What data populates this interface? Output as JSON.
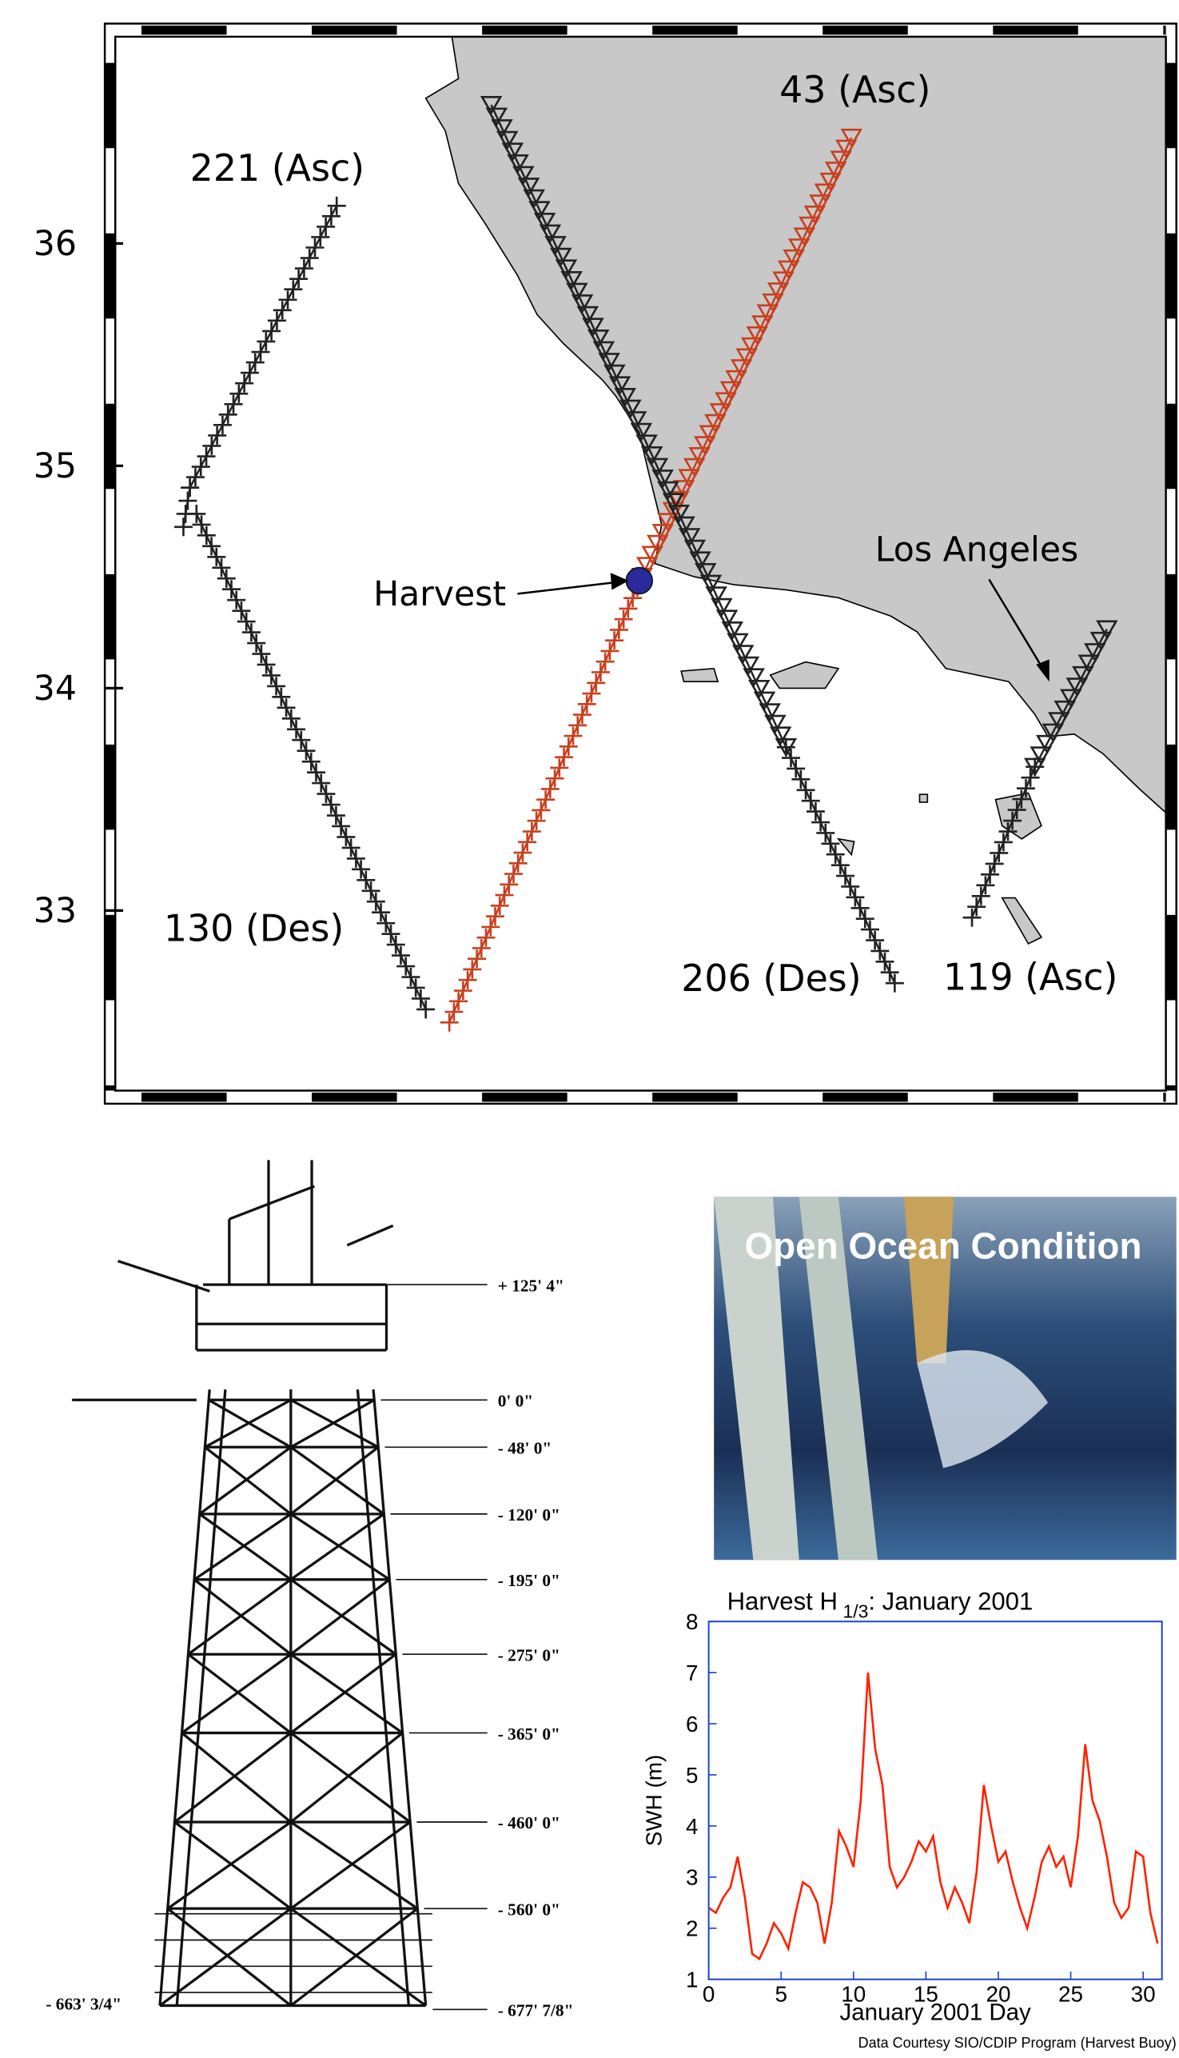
{
  "map": {
    "ylim": [
      32.19,
      36.93
    ],
    "yticks": [
      33,
      34,
      35,
      36
    ],
    "track_labels": [
      "221 (Asc)",
      "43 (Asc)",
      "130 (Des)",
      "206 (Des)",
      "119 (Asc)"
    ],
    "harvest": "Harvest",
    "city": "Los Angeles"
  },
  "platform": {
    "elevations": [
      "+ 125' 4\"",
      "0' 0\"",
      "- 48' 0\"",
      "- 120' 0\"",
      "- 195' 0\"",
      "- 275' 0\"",
      "- 365' 0\"",
      "- 460' 0\"",
      "- 560' 0\"",
      "- 677' 7/8\""
    ],
    "base_left": "- 663' 3/4\""
  },
  "photo": {
    "caption": "Open Ocean Condition"
  },
  "chart_data": {
    "type": "line",
    "title": "Harvest H",
    "title_subscript": "1/3",
    "title_suffix": ": January 2001",
    "x_label": "January 2001 Day",
    "y_label": "SWH (m)",
    "credit": "Data Courtesy SIO/CDIP Program (Harvest Buoy)",
    "xlim": [
      0,
      31.3
    ],
    "xticks": [
      0,
      5,
      10,
      15,
      20,
      25,
      30
    ],
    "ylim": [
      1,
      8
    ],
    "yticks": [
      1,
      2,
      3,
      4,
      5,
      6,
      7,
      8
    ],
    "series": [
      {
        "color": "#ff2200",
        "x": [
          0,
          0.5,
          1,
          1.5,
          2,
          2.5,
          3,
          3.5,
          4,
          4.5,
          5,
          5.5,
          6,
          6.5,
          7,
          7.5,
          8,
          8.5,
          9,
          9.5,
          10,
          10.5,
          11,
          11.5,
          12,
          12.5,
          13,
          13.5,
          14,
          14.5,
          15,
          15.5,
          16,
          16.5,
          17,
          17.5,
          18,
          18.5,
          19,
          19.5,
          20,
          20.5,
          21,
          21.5,
          22,
          22.5,
          23,
          23.5,
          24,
          24.5,
          25,
          25.5,
          26,
          26.5,
          27,
          27.5,
          28,
          28.5,
          29,
          29.5,
          30,
          30.5,
          31
        ],
        "values": [
          2.4,
          2.3,
          2.6,
          2.8,
          3.4,
          2.6,
          1.5,
          1.4,
          1.7,
          2.1,
          1.9,
          1.6,
          2.3,
          2.9,
          2.8,
          2.5,
          1.7,
          2.5,
          3.9,
          3.6,
          3.2,
          4.5,
          7.0,
          5.5,
          4.8,
          3.2,
          2.8,
          3.0,
          3.3,
          3.7,
          3.5,
          3.8,
          2.9,
          2.4,
          2.8,
          2.5,
          2.1,
          3.1,
          4.8,
          4.0,
          3.3,
          3.5,
          2.9,
          2.4,
          2.0,
          2.6,
          3.3,
          3.6,
          3.2,
          3.4,
          2.8,
          3.8,
          5.6,
          4.5,
          4.1,
          3.4,
          2.5,
          2.2,
          2.4,
          3.5,
          3.4,
          2.3,
          1.7
        ]
      }
    ]
  }
}
